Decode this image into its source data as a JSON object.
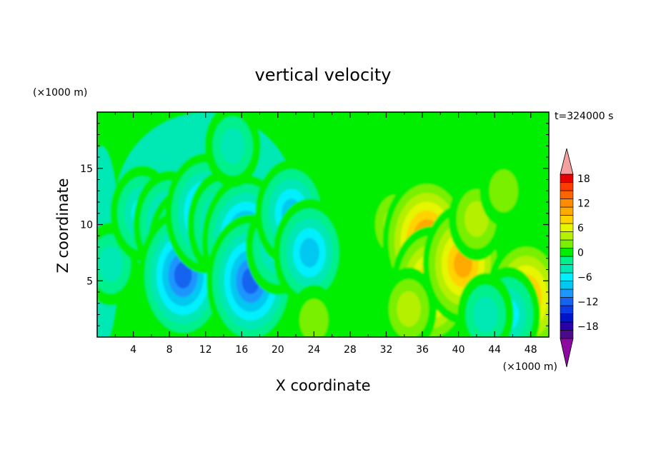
{
  "chart_data": {
    "type": "heatmap",
    "title": "vertical velocity",
    "xlabel": "X coordinate",
    "ylabel": "Z coordinate",
    "x_unit_label": "(×1000 m)",
    "y_unit_label": "(×1000 m)",
    "time_label": "t=324000 s",
    "xlim": [
      0,
      50
    ],
    "ylim": [
      0,
      20
    ],
    "x_ticks": [
      4,
      8,
      12,
      16,
      20,
      24,
      28,
      32,
      36,
      40,
      44,
      48
    ],
    "y_ticks": [
      5,
      10,
      15
    ],
    "colorbar": {
      "levels": [
        -20,
        -18,
        -16,
        -14,
        -12,
        -10,
        -8,
        -6,
        -4,
        -2,
        0,
        2,
        4,
        6,
        8,
        10,
        12,
        14,
        16,
        18,
        20
      ],
      "tick_labels": [
        -18,
        -12,
        -6,
        0,
        6,
        12,
        18
      ],
      "colors": [
        "#4b0a8a",
        "#2a00a8",
        "#0014c8",
        "#0a3ce6",
        "#1464f0",
        "#1e96ff",
        "#00c8f0",
        "#00f0ff",
        "#00e8b4",
        "#00f08c",
        "#00ee00",
        "#78f000",
        "#b4f000",
        "#e6f500",
        "#ffd200",
        "#ffaa00",
        "#ff8c00",
        "#ff6400",
        "#ff3c00",
        "#e60000"
      ],
      "under_color": "#8c0aa0",
      "over_color": "#f5a0a0"
    },
    "features": [
      {
        "x": 1.5,
        "z": 6.5,
        "w": -3
      },
      {
        "x": 5,
        "z": 11,
        "w": -5
      },
      {
        "x": 8,
        "z": 10,
        "w": -7
      },
      {
        "x": 10,
        "z": 8,
        "w": -10
      },
      {
        "x": 9.5,
        "z": 5.5,
        "w": -11
      },
      {
        "x": 12,
        "z": 11,
        "w": -9
      },
      {
        "x": 14,
        "z": 10,
        "w": -8
      },
      {
        "x": 16.5,
        "z": 8.5,
        "w": -12
      },
      {
        "x": 17,
        "z": 5,
        "w": -11
      },
      {
        "x": 20,
        "z": 8,
        "w": -6
      },
      {
        "x": 21.5,
        "z": 11,
        "w": -8
      },
      {
        "x": 23.5,
        "z": 7.5,
        "w": -8
      },
      {
        "x": 15,
        "z": 17,
        "w": -4
      },
      {
        "x": 24,
        "z": 1.5,
        "w": 3
      },
      {
        "x": 30,
        "z": 12,
        "w": 0
      },
      {
        "x": 33,
        "z": 10,
        "w": 4
      },
      {
        "x": 36.5,
        "z": 8.5,
        "w": 13
      },
      {
        "x": 37,
        "z": 4.5,
        "w": 10
      },
      {
        "x": 40.5,
        "z": 6.5,
        "w": 11
      },
      {
        "x": 42,
        "z": 10.5,
        "w": 5
      },
      {
        "x": 45,
        "z": 13,
        "w": 2
      },
      {
        "x": 47.5,
        "z": 3.5,
        "w": 10
      },
      {
        "x": 45.5,
        "z": 2,
        "w": -6
      },
      {
        "x": 43,
        "z": 2,
        "w": -4
      },
      {
        "x": 34.5,
        "z": 2.5,
        "w": 4
      }
    ]
  }
}
